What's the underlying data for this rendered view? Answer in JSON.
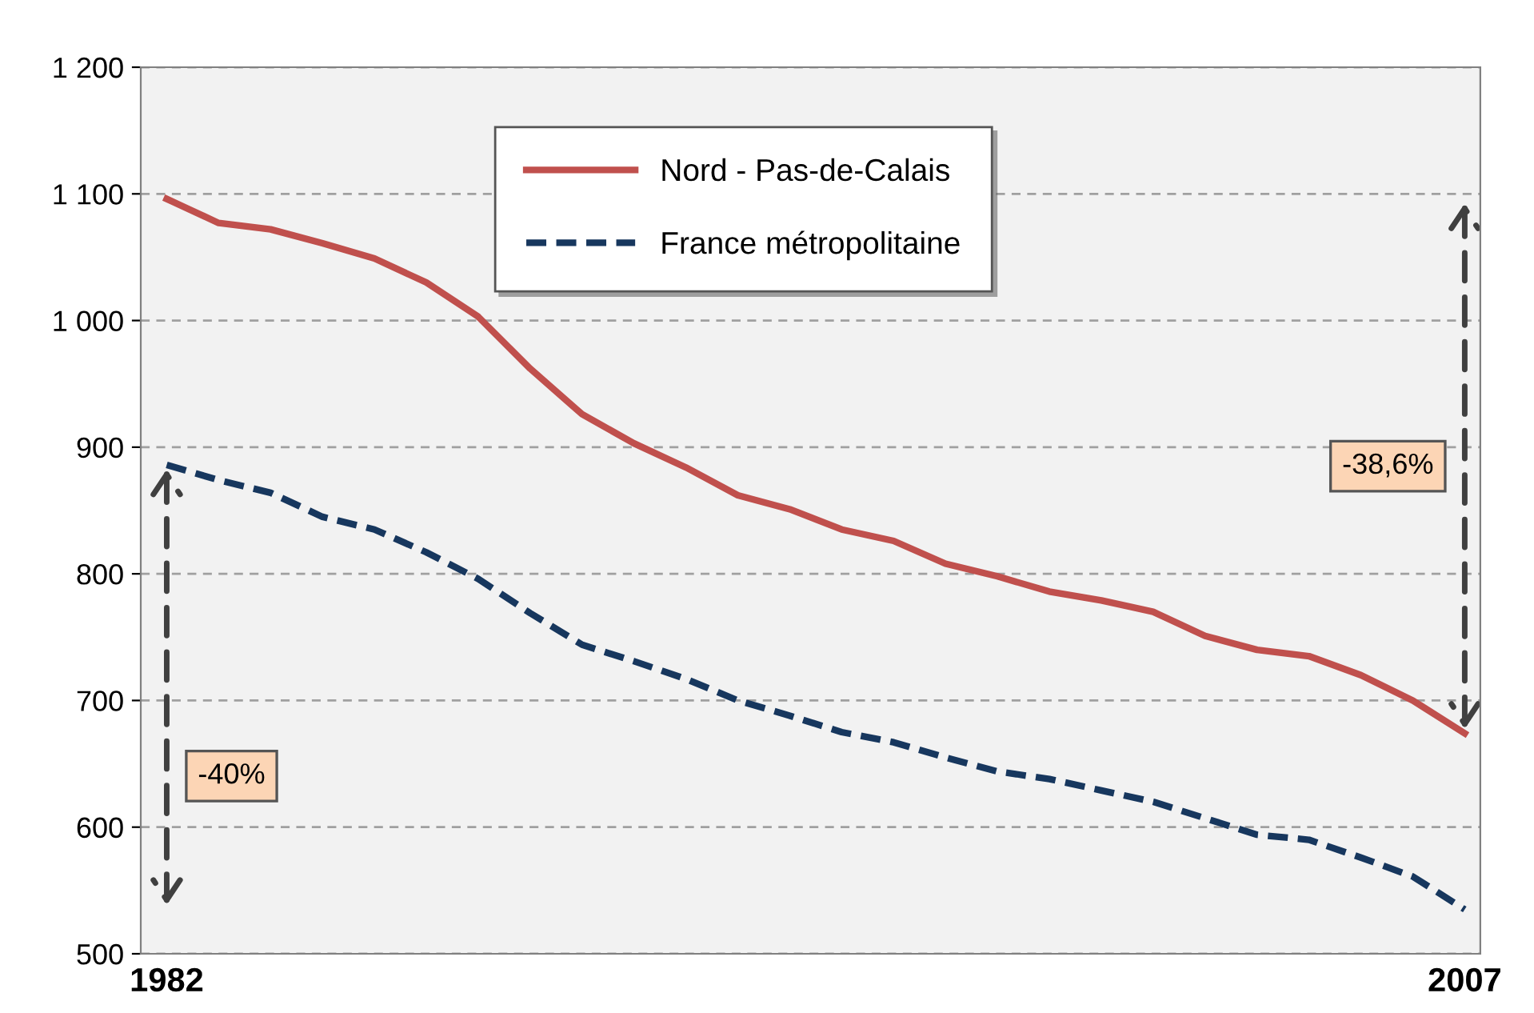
{
  "chart_data": {
    "type": "line",
    "x": [
      1982,
      1983,
      1984,
      1985,
      1986,
      1987,
      1988,
      1989,
      1990,
      1991,
      1992,
      1993,
      1994,
      1995,
      1996,
      1997,
      1998,
      1999,
      2000,
      2001,
      2002,
      2003,
      2004,
      2005,
      2006,
      2007
    ],
    "series": [
      {
        "name": "Nord - Pas-de-Calais",
        "color": "#c0504d",
        "line_style": "solid",
        "values": [
          1096,
          1077,
          1072,
          1061,
          1049,
          1030,
          1003,
          962,
          926,
          903,
          884,
          862,
          851,
          835,
          826,
          808,
          798,
          786,
          779,
          770,
          751,
          740,
          735,
          720,
          700,
          674
        ]
      },
      {
        "name": "France métropolitaine",
        "color": "#17375e",
        "line_style": "dashed",
        "values": [
          886,
          874,
          864,
          845,
          835,
          817,
          796,
          769,
          744,
          731,
          717,
          700,
          688,
          675,
          667,
          655,
          644,
          638,
          629,
          620,
          607,
          594,
          590,
          576,
          561,
          535
        ]
      }
    ],
    "xlim": [
      1981.5,
      2007.3
    ],
    "xticks": [
      1982,
      2007
    ],
    "ylim": [
      500,
      1200
    ],
    "yticks": [
      500,
      600,
      700,
      800,
      900,
      {
        "value": 1000,
        "label": "1 000"
      },
      {
        "value": 1100,
        "label": "1 100"
      },
      {
        "value": 1200,
        "label": "1 200"
      }
    ],
    "annotations": [
      "-38,6%",
      "-40%"
    ],
    "grid": "y",
    "legend": "top",
    "marker": "none"
  }
}
